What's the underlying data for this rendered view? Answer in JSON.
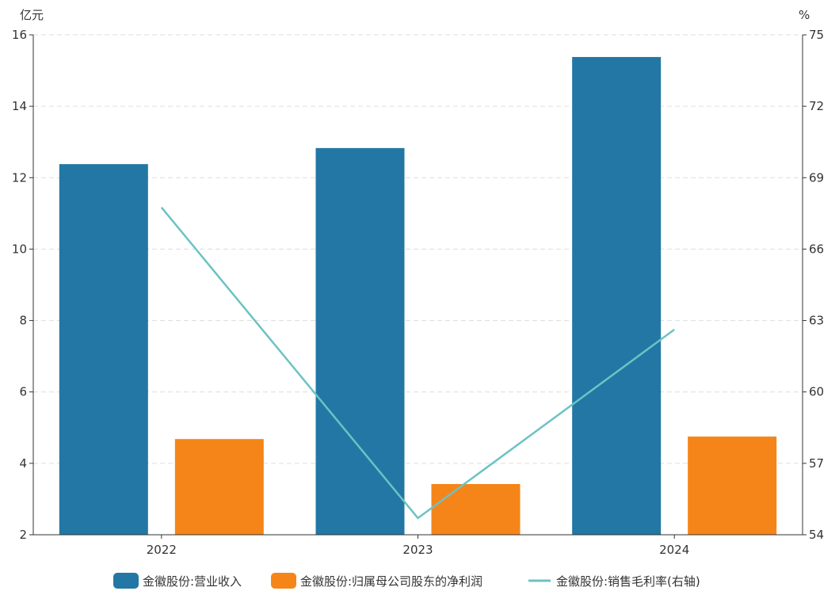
{
  "chart_data": {
    "type": "bar",
    "title": "",
    "categories": [
      "2022",
      "2023",
      "2024"
    ],
    "left_axis": {
      "label": "亿元",
      "ylim": [
        2,
        16
      ],
      "ticks": [
        2,
        4,
        6,
        8,
        10,
        12,
        14,
        16
      ]
    },
    "right_axis": {
      "label": "%",
      "ylim": [
        54,
        75
      ],
      "ticks": [
        54,
        57,
        60,
        63,
        66,
        69,
        72,
        75
      ]
    },
    "grid": true,
    "legend_position": "bottom",
    "series": [
      {
        "name": "金徽股份:营业收入",
        "type": "bar",
        "axis": "left",
        "color": "#2377a4",
        "values": [
          12.38,
          12.83,
          15.38
        ]
      },
      {
        "name": "金徽股份:归属母公司股东的净利润",
        "type": "bar",
        "axis": "left",
        "color": "#f58518",
        "values": [
          4.68,
          3.42,
          4.75
        ]
      },
      {
        "name": "金徽股份:销售毛利率(右轴)",
        "type": "line",
        "axis": "right",
        "color": "#6cc2c4",
        "values": [
          67.75,
          54.7,
          62.62
        ]
      }
    ]
  }
}
